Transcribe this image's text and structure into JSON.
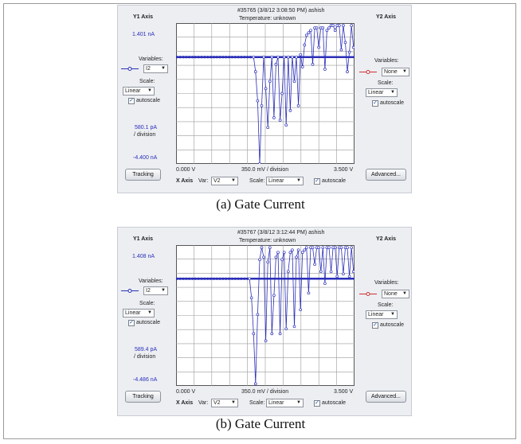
{
  "panels": [
    {
      "header": "#35765  (3/8/12 3:08:50 PM)  ashish",
      "temperature": "Temperature: unknown",
      "y1": {
        "title": "Y1 Axis",
        "top_value": "1.401 nA",
        "variables_label": "Variables:",
        "variable": "I2",
        "scale_label": "Scale:",
        "scale": "Linear",
        "autoscale": "autoscale",
        "per_division": "580.1 pA",
        "division_label": "/ division",
        "bottom_value": "-4.400 nA"
      },
      "y2": {
        "title": "Y2 Axis",
        "variables_label": "Variables:",
        "variable": "None",
        "scale_label": "Scale:",
        "scale": "Linear",
        "autoscale": "autoscale"
      },
      "x": {
        "min": "0.000 V",
        "per_division": "350.0 mV / division",
        "max": "3.500 V",
        "title": "X Axis",
        "var_label": "Var:",
        "var": "V2",
        "scale_label": "Scale:",
        "scale": "Linear",
        "autoscale": "autoscale"
      },
      "tracking": "Tracking",
      "advanced": "Advanced...",
      "series_color": "#2b2fb8",
      "y2_color": "#d03030"
    },
    {
      "header": "#35767  (3/8/12 3:12:44 PM)  ashish",
      "temperature": "Temperature: unknown",
      "y1": {
        "title": "Y1 Axis",
        "top_value": "1.408 nA",
        "variables_label": "Variables:",
        "variable": "I2",
        "scale_label": "Scale:",
        "scale": "Linear",
        "autoscale": "autoscale",
        "per_division": "589.4 pA",
        "division_label": "/ division",
        "bottom_value": "-4.486 nA"
      },
      "y2": {
        "title": "Y2 Axis",
        "variables_label": "Variables:",
        "variable": "None",
        "scale_label": "Scale:",
        "scale": "Linear",
        "autoscale": "autoscale"
      },
      "x": {
        "min": "0.000 V",
        "per_division": "350.0 mV / division",
        "max": "3.500 V",
        "title": "X Axis",
        "var_label": "Var:",
        "var": "V2",
        "scale_label": "Scale:",
        "scale": "Linear",
        "autoscale": "autoscale"
      },
      "tracking": "Tracking",
      "advanced": "Advanced...",
      "series_color": "#2b2fb8",
      "y2_color": "#d03030"
    }
  ],
  "captions": [
    "(a) Gate Current",
    "(b) Gate Current"
  ],
  "chart_data": [
    {
      "type": "line",
      "xlim": [
        0,
        3.5
      ],
      "ylim": [
        -4.4,
        1.401
      ],
      "x": [
        1.52,
        1.56,
        1.6,
        1.64,
        1.68,
        1.72,
        1.76,
        1.8,
        1.84,
        1.88,
        1.92,
        1.96,
        2.0,
        2.04,
        2.08,
        2.12,
        2.16,
        2.2,
        2.24,
        2.28,
        2.32,
        2.36,
        2.4,
        2.44,
        2.48,
        2.52,
        2.56,
        2.6,
        2.64,
        2.68,
        2.72,
        2.76,
        2.8,
        2.84,
        2.88,
        2.92,
        2.96,
        3.0,
        3.04,
        3.08,
        3.12,
        3.16,
        3.2,
        3.24,
        3.28,
        3.32,
        3.36,
        3.4,
        3.44,
        3.48
      ],
      "y": [
        0,
        -0.6,
        -1.8,
        -4.4,
        -2.0,
        0,
        -1.3,
        -2.9,
        -1.0,
        0,
        -2.5,
        -0.3,
        0,
        -2.6,
        -1.5,
        0,
        -2.8,
        0,
        -2.2,
        0,
        -1.0,
        0,
        -2.0,
        0.1,
        -0.4,
        0.5,
        0.9,
        1.0,
        1.1,
        -0.3,
        1.2,
        1.2,
        0.4,
        1.2,
        1.2,
        -0.5,
        1.1,
        1.2,
        1.3,
        1.3,
        1.1,
        1.3,
        1.3,
        0.3,
        1.3,
        0.6,
        -0.6,
        0.2,
        1.3,
        0.4
      ]
    },
    {
      "type": "line",
      "xlim": [
        0,
        3.5
      ],
      "ylim": [
        -4.486,
        1.408
      ],
      "x": [
        1.44,
        1.48,
        1.52,
        1.56,
        1.6,
        1.64,
        1.68,
        1.72,
        1.76,
        1.8,
        1.84,
        1.88,
        1.92,
        1.96,
        2.0,
        2.04,
        2.08,
        2.12,
        2.16,
        2.2,
        2.24,
        2.28,
        2.32,
        2.36,
        2.4,
        2.44,
        2.48,
        2.52,
        2.56,
        2.6,
        2.64,
        2.68,
        2.72,
        2.76,
        2.8,
        2.84,
        2.88,
        2.92,
        2.96,
        3.0,
        3.04,
        3.08,
        3.12,
        3.16,
        3.2,
        3.24,
        3.28,
        3.32,
        3.36,
        3.4,
        3.44,
        3.48
      ],
      "y": [
        0,
        -0.8,
        -2.3,
        -4.4,
        -1.5,
        0.8,
        1.3,
        0.9,
        -2.6,
        0.7,
        1.3,
        -2.3,
        -0.7,
        0.9,
        1.1,
        -2.3,
        0.8,
        1.1,
        -2.1,
        0.3,
        1.1,
        1.2,
        -2.0,
        0.9,
        1.2,
        -1.3,
        1.1,
        1.2,
        1.3,
        -0.6,
        1.3,
        1.3,
        0.6,
        1.3,
        1.3,
        0.3,
        1.3,
        -0.2,
        1.3,
        1.3,
        0.3,
        1.3,
        1.3,
        0.1,
        1.3,
        1.3,
        0.2,
        1.3,
        1.3,
        0.1,
        1.3,
        0.3
      ]
    }
  ]
}
